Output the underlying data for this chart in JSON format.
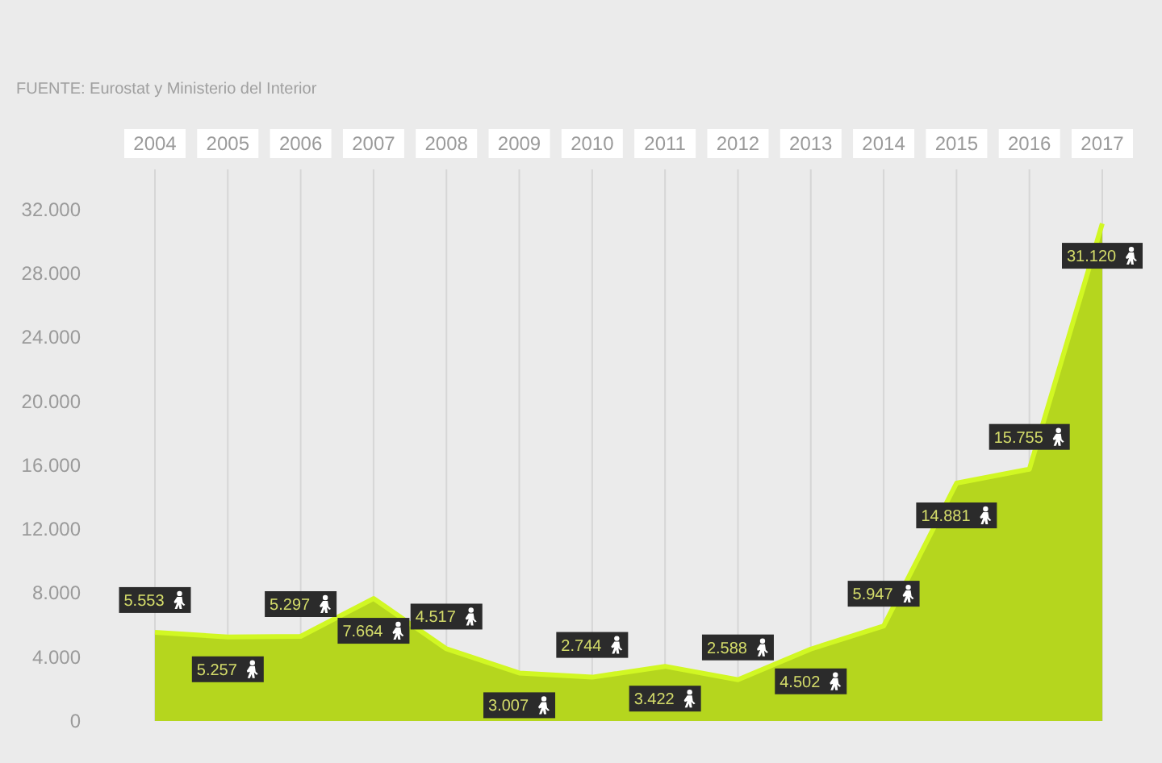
{
  "chart_data": {
    "type": "area",
    "annotations": [
      "FUENTE: Eurostat y Ministerio del Interior"
    ],
    "categories": [
      "2004",
      "2005",
      "2006",
      "2007",
      "2008",
      "2009",
      "2010",
      "2011",
      "2012",
      "2013",
      "2014",
      "2015",
      "2016",
      "2017"
    ],
    "values": [
      5553,
      5257,
      5297,
      7664,
      4517,
      3007,
      2744,
      3422,
      2588,
      4502,
      5947,
      14881,
      15755,
      31120
    ],
    "value_labels": [
      "5.553",
      "5.257",
      "5.297",
      "7.664",
      "4.517",
      "3.007",
      "2.744",
      "3.422",
      "2.588",
      "4.502",
      "5.947",
      "14.881",
      "15.755",
      "31.120"
    ],
    "color": "#b5d61e",
    "ylim": [
      0,
      34000
    ],
    "yticks": [
      0,
      {
        "value": 4000,
        "label": "4.000"
      },
      {
        "value": 8000,
        "label": "8.000"
      },
      {
        "value": 12000,
        "label": "12.000"
      },
      {
        "value": 16000,
        "label": "16.000"
      },
      {
        "value": 20000,
        "label": "20.000"
      },
      {
        "value": 24000,
        "label": "24.000"
      },
      {
        "value": 28000,
        "label": "28.000"
      },
      {
        "value": 32000,
        "label": "32.000"
      }
    ],
    "grid": "x"
  }
}
